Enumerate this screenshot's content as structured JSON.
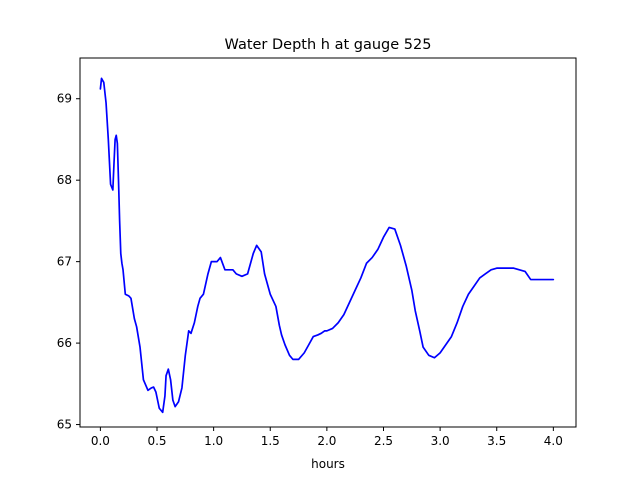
{
  "chart_data": {
    "type": "line",
    "title": "Water Depth h at gauge 525",
    "xlabel": "hours",
    "ylabel": "",
    "xlim": [
      -0.18,
      4.2
    ],
    "ylim": [
      64.97,
      69.5
    ],
    "xticks": [
      0.0,
      0.5,
      1.0,
      1.5,
      2.0,
      2.5,
      3.0,
      3.5,
      4.0
    ],
    "xtick_labels": [
      "0.0",
      "0.5",
      "1.0",
      "1.5",
      "2.0",
      "2.5",
      "3.0",
      "3.5",
      "4.0"
    ],
    "yticks": [
      65,
      66,
      67,
      68,
      69
    ],
    "ytick_labels": [
      "65",
      "66",
      "67",
      "68",
      "69"
    ],
    "grid": false,
    "legend": "none",
    "series": [
      {
        "color": "#0000ff",
        "x": [
          0.0,
          0.01,
          0.03,
          0.05,
          0.07,
          0.09,
          0.11,
          0.12,
          0.13,
          0.14,
          0.15,
          0.16,
          0.17,
          0.18,
          0.19,
          0.2,
          0.22,
          0.25,
          0.27,
          0.3,
          0.32,
          0.35,
          0.38,
          0.42,
          0.45,
          0.47,
          0.49,
          0.52,
          0.55,
          0.57,
          0.58,
          0.6,
          0.62,
          0.64,
          0.66,
          0.69,
          0.72,
          0.75,
          0.78,
          0.8,
          0.83,
          0.86,
          0.88,
          0.91,
          0.95,
          0.98,
          1.0,
          1.03,
          1.06,
          1.1,
          1.14,
          1.17,
          1.2,
          1.25,
          1.3,
          1.35,
          1.38,
          1.42,
          1.45,
          1.5,
          1.55,
          1.58,
          1.6,
          1.63,
          1.67,
          1.7,
          1.75,
          1.8,
          1.84,
          1.88,
          1.92,
          1.95,
          1.98,
          2.0,
          2.05,
          2.1,
          2.15,
          2.2,
          2.25,
          2.3,
          2.35,
          2.4,
          2.45,
          2.5,
          2.55,
          2.6,
          2.65,
          2.7,
          2.75,
          2.78,
          2.82,
          2.85,
          2.9,
          2.95,
          3.0,
          3.05,
          3.1,
          3.15,
          3.2,
          3.25,
          3.3,
          3.35,
          3.4,
          3.45,
          3.5,
          3.55,
          3.6,
          3.65,
          3.7,
          3.75,
          3.8,
          3.85,
          3.9,
          3.93,
          3.96,
          4.0
        ],
        "y": [
          69.12,
          69.25,
          69.2,
          68.95,
          68.5,
          67.95,
          67.88,
          68.2,
          68.5,
          68.55,
          68.45,
          68.0,
          67.5,
          67.1,
          66.98,
          66.9,
          66.6,
          66.58,
          66.55,
          66.3,
          66.2,
          65.95,
          65.55,
          65.42,
          65.45,
          65.46,
          65.4,
          65.2,
          65.15,
          65.35,
          65.6,
          65.68,
          65.55,
          65.3,
          65.22,
          65.28,
          65.45,
          65.85,
          66.15,
          66.12,
          66.25,
          66.45,
          66.55,
          66.6,
          66.85,
          67.0,
          67.0,
          67.0,
          67.05,
          66.9,
          66.9,
          66.9,
          66.85,
          66.82,
          66.85,
          67.1,
          67.2,
          67.12,
          66.85,
          66.6,
          66.45,
          66.22,
          66.1,
          65.98,
          65.85,
          65.8,
          65.8,
          65.88,
          65.98,
          66.08,
          66.1,
          66.12,
          66.15,
          66.15,
          66.18,
          66.25,
          66.35,
          66.5,
          66.65,
          66.8,
          66.98,
          67.05,
          67.15,
          67.3,
          67.42,
          67.4,
          67.2,
          66.95,
          66.65,
          66.4,
          66.15,
          65.95,
          65.85,
          65.82,
          65.88,
          65.98,
          66.08,
          66.25,
          66.45,
          66.6,
          66.7,
          66.8,
          66.85,
          66.9,
          66.92,
          66.92,
          66.92,
          66.92,
          66.9,
          66.88,
          66.78,
          66.78,
          66.78,
          66.78,
          66.78,
          66.78
        ]
      }
    ]
  }
}
